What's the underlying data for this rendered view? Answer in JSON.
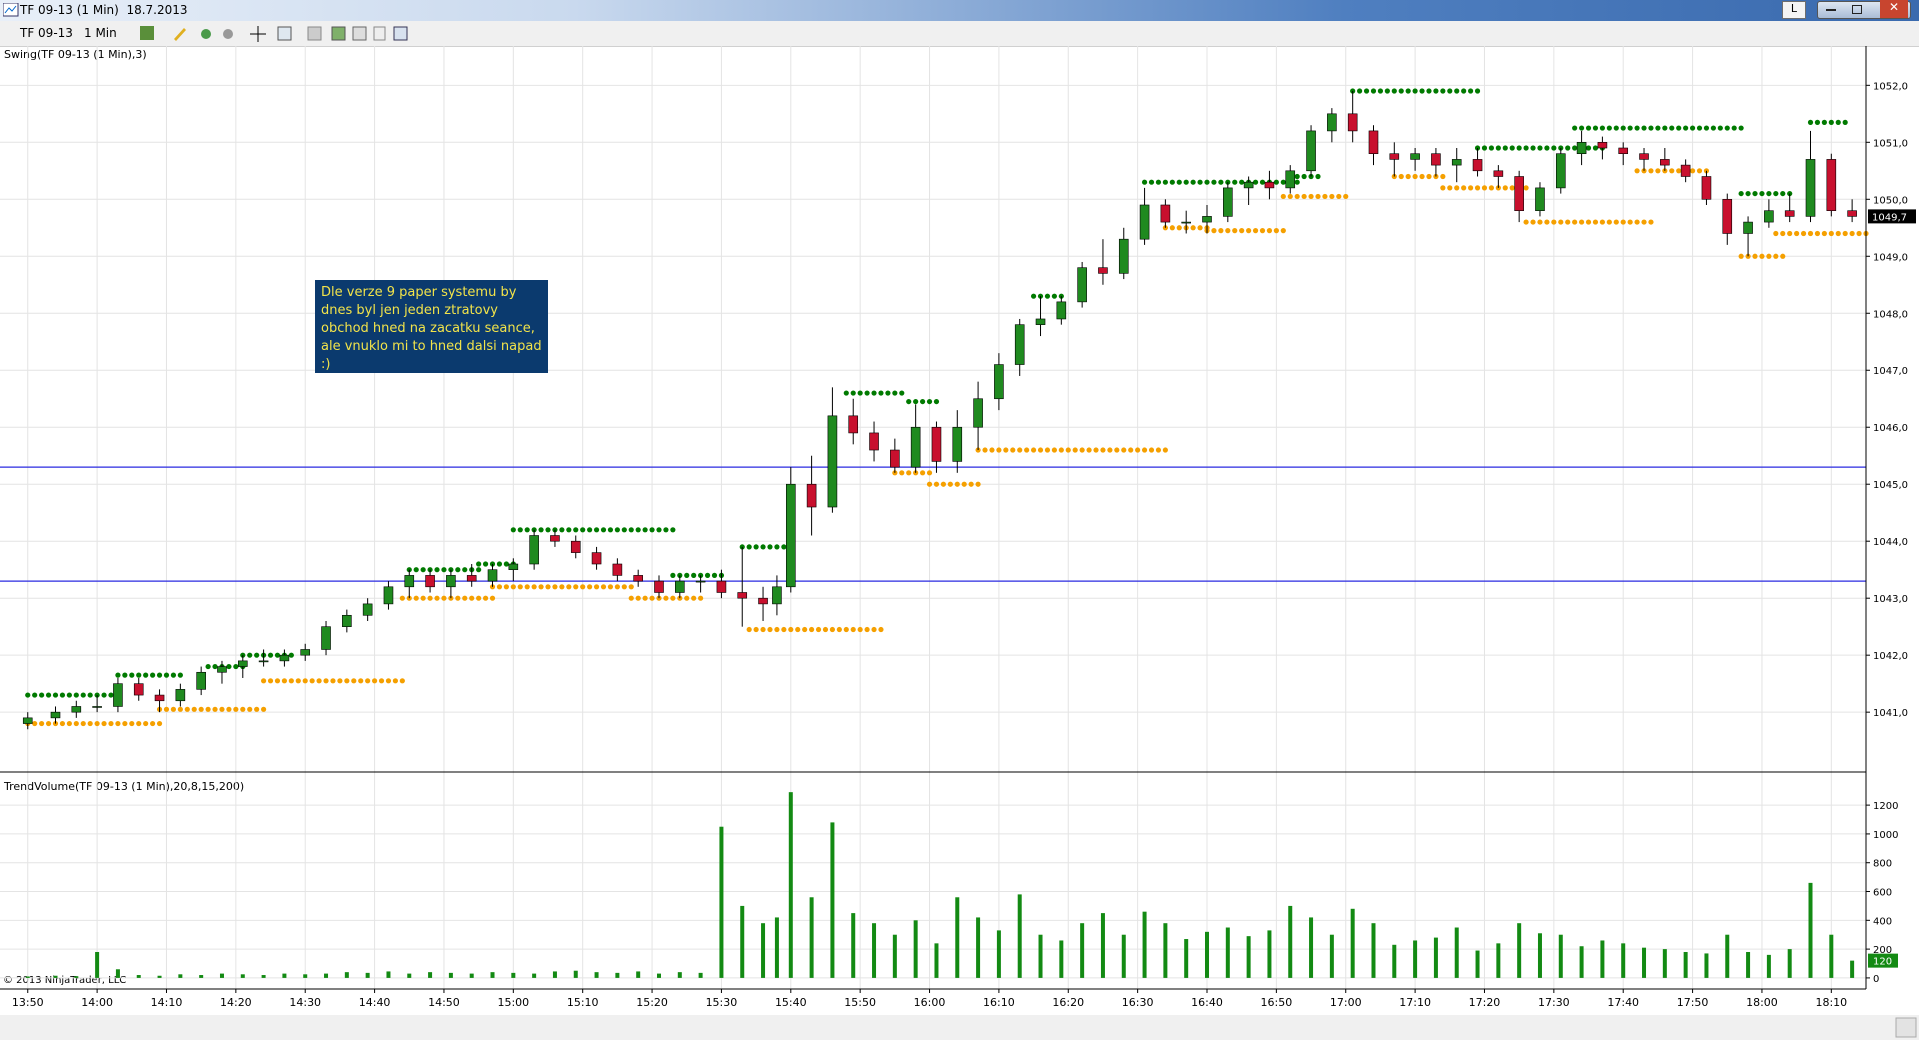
{
  "window": {
    "title": "TF 09-13 (1 Min)  18.7.2013",
    "button": "L"
  },
  "toolbar": {
    "instrument": "TF 09-13",
    "interval": "1 Min"
  },
  "copyright": "© 2013 NinjaTrader, LLC",
  "chart_data": [
    {
      "type": "candlestick",
      "indicator_label": "Swing(TF 09-13 (1 Min),3)",
      "up_color": "#1f8a1f",
      "down_color": "#c8102e",
      "x": [
        "13:50",
        "13:54",
        "13:57",
        "14:00",
        "14:03",
        "14:06",
        "14:09",
        "14:12",
        "14:15",
        "14:18",
        "14:21",
        "14:24",
        "14:27",
        "14:30",
        "14:33",
        "14:36",
        "14:39",
        "14:42",
        "14:45",
        "14:48",
        "14:51",
        "14:54",
        "14:57",
        "15:00",
        "15:03",
        "15:06",
        "15:09",
        "15:12",
        "15:15",
        "15:18",
        "15:21",
        "15:24",
        "15:27",
        "15:30",
        "15:33",
        "15:36",
        "15:38",
        "15:40",
        "15:43",
        "15:46",
        "15:49",
        "15:52",
        "15:55",
        "15:58",
        "16:01",
        "16:04",
        "16:07",
        "16:10",
        "16:13",
        "16:16",
        "16:19",
        "16:22",
        "16:25",
        "16:28",
        "16:31",
        "16:34",
        "16:37",
        "16:40",
        "16:43",
        "16:46",
        "16:49",
        "16:52",
        "16:55",
        "16:58",
        "17:01",
        "17:04",
        "17:07",
        "17:10",
        "17:13",
        "17:16",
        "17:19",
        "17:22",
        "17:25",
        "17:28",
        "17:31",
        "17:34",
        "17:37",
        "17:40",
        "17:43",
        "17:46",
        "17:49",
        "17:52",
        "17:55",
        "17:58",
        "18:01",
        "18:04",
        "18:07",
        "18:10",
        "18:13"
      ],
      "open": [
        1040.8,
        1040.9,
        1041.0,
        1041.1,
        1041.1,
        1041.5,
        1041.3,
        1041.2,
        1041.4,
        1041.7,
        1041.8,
        1041.9,
        1041.9,
        1042.0,
        1042.1,
        1042.5,
        1042.7,
        1042.9,
        1043.2,
        1043.4,
        1043.2,
        1043.4,
        1043.3,
        1043.5,
        1043.6,
        1044.1,
        1044.0,
        1043.8,
        1043.6,
        1043.4,
        1043.3,
        1043.1,
        1043.3,
        1043.3,
        1043.1,
        1043.0,
        1042.9,
        1043.2,
        1045.0,
        1044.6,
        1046.2,
        1045.9,
        1045.6,
        1045.3,
        1046.0,
        1045.4,
        1046.0,
        1046.5,
        1047.1,
        1047.8,
        1047.9,
        1048.2,
        1048.8,
        1048.7,
        1049.3,
        1049.9,
        1049.6,
        1049.6,
        1049.7,
        1050.2,
        1050.3,
        1050.2,
        1050.5,
        1051.2,
        1051.5,
        1051.2,
        1050.8,
        1050.7,
        1050.8,
        1050.6,
        1050.7,
        1050.5,
        1050.4,
        1049.8,
        1050.2,
        1050.8,
        1051.0,
        1050.9,
        1050.8,
        1050.7,
        1050.6,
        1050.4,
        1050.0,
        1049.4,
        1049.6,
        1049.8,
        1049.7,
        1050.7,
        1049.8
      ],
      "high": [
        1041.0,
        1041.1,
        1041.2,
        1041.3,
        1041.6,
        1041.6,
        1041.4,
        1041.5,
        1041.8,
        1041.9,
        1042.0,
        1042.1,
        1042.1,
        1042.2,
        1042.6,
        1042.8,
        1043.0,
        1043.3,
        1043.5,
        1043.5,
        1043.5,
        1043.6,
        1043.6,
        1043.7,
        1044.2,
        1044.2,
        1044.1,
        1043.9,
        1043.7,
        1043.5,
        1043.4,
        1043.4,
        1043.4,
        1043.5,
        1043.9,
        1043.2,
        1043.4,
        1045.3,
        1045.5,
        1046.7,
        1046.5,
        1046.1,
        1045.8,
        1046.4,
        1046.1,
        1046.3,
        1046.8,
        1047.3,
        1047.9,
        1048.3,
        1048.3,
        1048.9,
        1049.3,
        1049.5,
        1050.2,
        1050.0,
        1049.8,
        1049.9,
        1050.3,
        1050.4,
        1050.5,
        1050.6,
        1051.3,
        1051.6,
        1051.9,
        1051.3,
        1051.0,
        1050.9,
        1050.9,
        1050.9,
        1050.9,
        1050.6,
        1050.5,
        1050.3,
        1050.9,
        1051.2,
        1051.1,
        1051.0,
        1050.9,
        1050.9,
        1050.7,
        1050.5,
        1050.1,
        1049.7,
        1050.0,
        1050.1,
        1051.2,
        1050.8,
        1050.0
      ],
      "low": [
        1040.7,
        1040.8,
        1040.9,
        1041.0,
        1041.0,
        1041.2,
        1041.0,
        1041.1,
        1041.3,
        1041.5,
        1041.6,
        1041.8,
        1041.8,
        1041.9,
        1042.0,
        1042.4,
        1042.6,
        1042.8,
        1043.0,
        1043.1,
        1043.0,
        1043.2,
        1043.2,
        1043.3,
        1043.5,
        1043.9,
        1043.7,
        1043.5,
        1043.3,
        1043.2,
        1043.0,
        1043.0,
        1043.1,
        1043.0,
        1042.5,
        1042.6,
        1042.7,
        1043.1,
        1044.1,
        1044.5,
        1045.7,
        1045.4,
        1045.2,
        1045.2,
        1045.2,
        1045.2,
        1045.6,
        1046.3,
        1046.9,
        1047.6,
        1047.8,
        1048.1,
        1048.5,
        1048.6,
        1049.2,
        1049.5,
        1049.4,
        1049.4,
        1049.6,
        1049.9,
        1050.0,
        1050.1,
        1050.4,
        1051.0,
        1051.0,
        1050.6,
        1050.4,
        1050.5,
        1050.4,
        1050.3,
        1050.4,
        1050.2,
        1049.6,
        1049.7,
        1050.1,
        1050.6,
        1050.7,
        1050.6,
        1050.5,
        1050.5,
        1050.3,
        1049.9,
        1049.2,
        1049.0,
        1049.5,
        1049.6,
        1049.6,
        1049.7,
        1049.6
      ],
      "close": [
        1040.9,
        1041.0,
        1041.1,
        1041.1,
        1041.5,
        1041.3,
        1041.2,
        1041.4,
        1041.7,
        1041.8,
        1041.9,
        1041.9,
        1042.0,
        1042.1,
        1042.5,
        1042.7,
        1042.9,
        1043.2,
        1043.4,
        1043.2,
        1043.4,
        1043.3,
        1043.5,
        1043.6,
        1044.1,
        1044.0,
        1043.8,
        1043.6,
        1043.4,
        1043.3,
        1043.1,
        1043.3,
        1043.3,
        1043.1,
        1043.0,
        1042.9,
        1043.2,
        1045.0,
        1044.6,
        1046.2,
        1045.9,
        1045.6,
        1045.3,
        1046.0,
        1045.4,
        1046.0,
        1046.5,
        1047.1,
        1047.8,
        1047.9,
        1048.2,
        1048.8,
        1048.7,
        1049.3,
        1049.9,
        1049.6,
        1049.6,
        1049.7,
        1050.2,
        1050.3,
        1050.2,
        1050.5,
        1051.2,
        1051.5,
        1051.2,
        1050.8,
        1050.7,
        1050.8,
        1050.6,
        1050.7,
        1050.5,
        1050.4,
        1049.8,
        1050.2,
        1050.8,
        1051.0,
        1050.9,
        1050.8,
        1050.7,
        1050.6,
        1050.4,
        1050.0,
        1049.4,
        1049.6,
        1049.8,
        1049.7,
        1050.7,
        1049.8,
        1049.7
      ],
      "xlim": [
        "13:46",
        "18:15"
      ],
      "xticks": [
        "13:50",
        "14:00",
        "14:10",
        "14:20",
        "14:30",
        "14:40",
        "14:50",
        "15:00",
        "15:10",
        "15:20",
        "15:30",
        "15:40",
        "15:50",
        "16:00",
        "16:10",
        "16:20",
        "16:30",
        "16:40",
        "16:50",
        "17:00",
        "17:10",
        "17:20",
        "17:30",
        "17:40",
        "17:50",
        "18:00",
        "18:10"
      ],
      "ylim": [
        1039.95,
        1052.69
      ],
      "yticks": [
        {
          "value": 1041,
          "label": "1041,0"
        },
        {
          "value": 1042,
          "label": "1042,0"
        },
        {
          "value": 1043,
          "label": "1043,0"
        },
        {
          "value": 1044,
          "label": "1044,0"
        },
        {
          "value": 1045,
          "label": "1045,0"
        },
        {
          "value": 1046,
          "label": "1046,0"
        },
        {
          "value": 1047,
          "label": "1047,0"
        },
        {
          "value": 1048,
          "label": "1048,0"
        },
        {
          "value": 1049,
          "label": "1049,0"
        },
        {
          "value": 1050,
          "label": "1050,0"
        },
        {
          "value": 1051,
          "label": "1051,0"
        },
        {
          "value": 1052,
          "label": "1052,0"
        }
      ],
      "grid": true,
      "swing_highs": {
        "color": "#007a00",
        "segments": [
          {
            "start": "13:50",
            "end": "14:03",
            "price": 1041.3
          },
          {
            "start": "14:03",
            "end": "14:12",
            "price": 1041.65
          },
          {
            "start": "14:16",
            "end": "14:21",
            "price": 1041.8
          },
          {
            "start": "14:21",
            "end": "14:28",
            "price": 1042.0
          },
          {
            "start": "14:45",
            "end": "14:55",
            "price": 1043.5
          },
          {
            "start": "14:55",
            "end": "15:00",
            "price": 1043.6
          },
          {
            "start": "15:00",
            "end": "15:23",
            "price": 1044.2
          },
          {
            "start": "15:23",
            "end": "15:30",
            "price": 1043.4
          },
          {
            "start": "15:33",
            "end": "15:40",
            "price": 1043.9
          },
          {
            "start": "15:48",
            "end": "15:56",
            "price": 1046.6
          },
          {
            "start": "15:57",
            "end": "16:01",
            "price": 1046.45
          },
          {
            "start": "16:15",
            "end": "16:19",
            "price": 1048.3
          },
          {
            "start": "16:31",
            "end": "16:53",
            "price": 1050.3
          },
          {
            "start": "16:53",
            "end": "16:56",
            "price": 1050.4
          },
          {
            "start": "17:01",
            "end": "17:19",
            "price": 1051.9
          },
          {
            "start": "17:19",
            "end": "17:37",
            "price": 1050.9
          },
          {
            "start": "17:33",
            "end": "17:57",
            "price": 1051.25
          },
          {
            "start": "17:57",
            "end": "18:04",
            "price": 1050.1
          },
          {
            "start": "18:07",
            "end": "18:12",
            "price": 1051.35
          }
        ]
      },
      "swing_lows": {
        "color": "#f5a000",
        "segments": [
          {
            "start": "13:50",
            "end": "14:09",
            "price": 1040.8
          },
          {
            "start": "14:09",
            "end": "14:24",
            "price": 1041.05
          },
          {
            "start": "14:24",
            "end": "14:44",
            "price": 1041.55
          },
          {
            "start": "14:44",
            "end": "14:57",
            "price": 1043.0
          },
          {
            "start": "14:57",
            "end": "15:17",
            "price": 1043.2
          },
          {
            "start": "15:17",
            "end": "15:27",
            "price": 1043.0
          },
          {
            "start": "15:34",
            "end": "15:53",
            "price": 1042.45
          },
          {
            "start": "15:55",
            "end": "16:00",
            "price": 1045.2
          },
          {
            "start": "16:00",
            "end": "16:07",
            "price": 1045.0
          },
          {
            "start": "16:07",
            "end": "16:34",
            "price": 1045.6
          },
          {
            "start": "16:34",
            "end": "16:40",
            "price": 1049.5
          },
          {
            "start": "16:40",
            "end": "16:51",
            "price": 1049.45
          },
          {
            "start": "16:51",
            "end": "17:00",
            "price": 1050.05
          },
          {
            "start": "17:07",
            "end": "17:14",
            "price": 1050.4
          },
          {
            "start": "17:14",
            "end": "17:26",
            "price": 1050.2
          },
          {
            "start": "17:26",
            "end": "17:44",
            "price": 1049.6
          },
          {
            "start": "17:42",
            "end": "17:52",
            "price": 1050.5
          },
          {
            "start": "17:57",
            "end": "18:03",
            "price": 1049.0
          },
          {
            "start": "18:02",
            "end": "18:15",
            "price": 1049.4
          }
        ]
      },
      "hlines": {
        "color": "#2a2ae0",
        "values": [
          1045.3,
          1043.3
        ]
      },
      "annotation": "Dle verze 9 paper systemu by dnes byl jen jeden ztratovy obchod hned na zacatku seance, ale vnuklo mi to hned dalsi napad :)",
      "last_price": {
        "value": 1049.7,
        "label": "1049,7"
      }
    },
    {
      "type": "bar",
      "indicator_label": "TrendVolume(TF 09-13 (1 Min),20,8,15,200)",
      "color": "#138a13",
      "x": [
        "13:50",
        "13:54",
        "13:57",
        "14:00",
        "14:03",
        "14:06",
        "14:09",
        "14:12",
        "14:15",
        "14:18",
        "14:21",
        "14:24",
        "14:27",
        "14:30",
        "14:33",
        "14:36",
        "14:39",
        "14:42",
        "14:45",
        "14:48",
        "14:51",
        "14:54",
        "14:57",
        "15:00",
        "15:03",
        "15:06",
        "15:09",
        "15:12",
        "15:15",
        "15:18",
        "15:21",
        "15:24",
        "15:27",
        "15:30",
        "15:33",
        "15:36",
        "15:38",
        "15:40",
        "15:43",
        "15:46",
        "15:49",
        "15:52",
        "15:55",
        "15:58",
        "16:01",
        "16:04",
        "16:07",
        "16:10",
        "16:13",
        "16:16",
        "16:19",
        "16:22",
        "16:25",
        "16:28",
        "16:31",
        "16:34",
        "16:37",
        "16:40",
        "16:43",
        "16:46",
        "16:49",
        "16:52",
        "16:55",
        "16:58",
        "17:01",
        "17:04",
        "17:07",
        "17:10",
        "17:13",
        "17:16",
        "17:19",
        "17:22",
        "17:25",
        "17:28",
        "17:31",
        "17:34",
        "17:37",
        "17:40",
        "17:43",
        "17:46",
        "17:49",
        "17:52",
        "17:55",
        "17:58",
        "18:01",
        "18:04",
        "18:07",
        "18:10",
        "18:13"
      ],
      "values": [
        10,
        15,
        12,
        180,
        60,
        20,
        15,
        25,
        20,
        30,
        25,
        20,
        30,
        25,
        30,
        40,
        35,
        45,
        30,
        40,
        35,
        30,
        40,
        35,
        30,
        45,
        50,
        40,
        35,
        45,
        30,
        40,
        35,
        1050,
        500,
        380,
        420,
        1290,
        560,
        1080,
        450,
        380,
        300,
        400,
        240,
        560,
        420,
        330,
        580,
        300,
        260,
        380,
        450,
        300,
        460,
        380,
        270,
        320,
        350,
        290,
        330,
        500,
        420,
        300,
        480,
        380,
        230,
        260,
        280,
        350,
        190,
        240,
        380,
        310,
        300,
        220,
        260,
        240,
        210,
        200,
        180,
        170,
        300,
        180,
        160,
        200,
        660,
        300,
        120
      ],
      "xlim": [
        "13:46",
        "18:15"
      ],
      "xticks": [
        "13:50",
        "14:00",
        "14:10",
        "14:20",
        "14:30",
        "14:40",
        "14:50",
        "15:00",
        "15:10",
        "15:20",
        "15:30",
        "15:40",
        "15:50",
        "16:00",
        "16:10",
        "16:20",
        "16:30",
        "16:40",
        "16:50",
        "17:00",
        "17:10",
        "17:20",
        "17:30",
        "17:40",
        "17:50",
        "18:00",
        "18:10"
      ],
      "ylim": [
        -77,
        1430
      ],
      "yticks": [
        0,
        200,
        400,
        600,
        800,
        1000,
        1200
      ],
      "grid": true,
      "last_value": 120
    }
  ]
}
